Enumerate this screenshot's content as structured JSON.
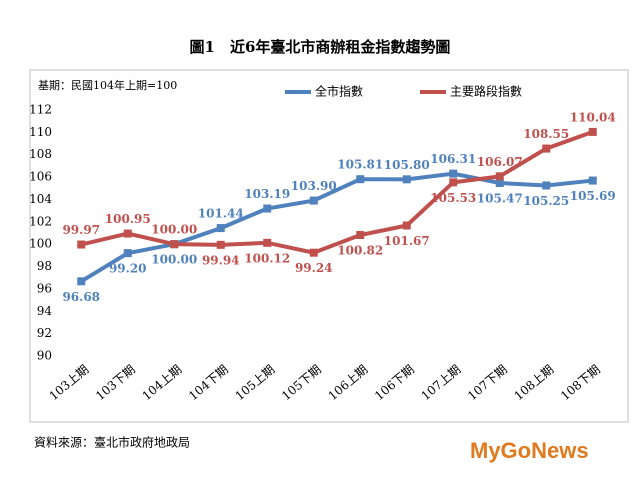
{
  "chart_data": {
    "type": "line",
    "title": "圖1　近6年臺北市商辦租金指數趨勢圖",
    "note": "基期：民國104年上期=100",
    "source": "資料來源：臺北市政府地政局",
    "watermark": "MyGoNews",
    "categories": [
      "103上期",
      "103下期",
      "104上期",
      "104下期",
      "105上期",
      "105下期",
      "106上期",
      "106下期",
      "107上期",
      "107下期",
      "108上期",
      "108下期"
    ],
    "series": [
      {
        "name": "全市指數",
        "color": "#4f81bd",
        "values": [
          96.68,
          99.2,
          100,
          101.44,
          103.19,
          103.9,
          105.81,
          105.8,
          106.31,
          105.47,
          105.25,
          105.69
        ],
        "value_labels": [
          "96.68",
          "99.20",
          "100.00",
          "101.44",
          "103.19",
          "103.90",
          "105.81",
          "105.80",
          "106.31",
          "105.47",
          "105.25",
          "105.69"
        ]
      },
      {
        "name": "主要路段指數",
        "color": "#c0504d",
        "values": [
          99.97,
          100.95,
          100,
          99.94,
          100.12,
          99.24,
          100.82,
          101.67,
          105.53,
          106.07,
          108.55,
          110.04
        ],
        "value_labels": [
          "99.97",
          "100.95",
          "100.00",
          "99.94",
          "100.12",
          "99.24",
          "100.82",
          "101.67",
          "105.53",
          "106.07",
          "108.55",
          "110.04"
        ]
      }
    ],
    "ylim": [
      90,
      112
    ],
    "yticks": [
      90,
      92,
      94,
      96,
      98,
      100,
      102,
      104,
      106,
      108,
      110,
      112
    ],
    "grid": false
  }
}
